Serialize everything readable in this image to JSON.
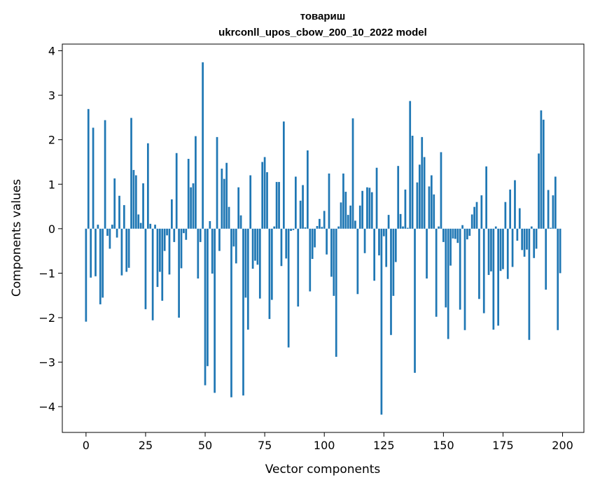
{
  "chart_data": {
    "type": "bar",
    "title_line1": "товариш",
    "title_line2": "ukrconll_upos_cbow_200_10_2022 model",
    "xlabel": "Vector components",
    "ylabel": "Components values",
    "xlim": [
      -9.95,
      208.95
    ],
    "ylim": [
      -4.58,
      4.15
    ],
    "xticks": [
      0,
      25,
      50,
      75,
      100,
      125,
      150,
      175,
      200
    ],
    "xtick_labels": [
      "0",
      "25",
      "50",
      "75",
      "100",
      "125",
      "150",
      "175",
      "200"
    ],
    "yticks": [
      -4,
      -3,
      -2,
      -1,
      0,
      1,
      2,
      3,
      4
    ],
    "ytick_labels": [
      "−4",
      "−3",
      "−2",
      "−1",
      "0",
      "1",
      "2",
      "3",
      "4"
    ],
    "bar_color": "#1f77b4",
    "grid": false,
    "values": [
      -2.09,
      2.69,
      -1.1,
      2.27,
      -1.07,
      0.09,
      -1.7,
      -1.55,
      2.44,
      -0.16,
      -0.45,
      0.09,
      1.13,
      -0.2,
      0.74,
      -1.05,
      0.53,
      -0.97,
      -0.88,
      2.49,
      1.32,
      1.2,
      0.32,
      0.13,
      1.02,
      -1.81,
      1.92,
      0.11,
      -2.06,
      0.09,
      -1.31,
      -0.97,
      -1.62,
      -0.5,
      -0.15,
      -1.03,
      0.66,
      -0.3,
      1.7,
      -2.0,
      -0.89,
      -0.1,
      -0.25,
      1.57,
      0.93,
      1.02,
      2.08,
      -1.12,
      -0.3,
      3.74,
      -3.52,
      -3.09,
      0.17,
      -1.01,
      -3.69,
      2.06,
      -0.5,
      1.35,
      1.12,
      1.48,
      0.49,
      -3.79,
      -0.4,
      -0.78,
      0.93,
      0.3,
      -3.75,
      -1.55,
      -2.27,
      1.2,
      -0.9,
      -0.72,
      -0.81,
      -1.57,
      1.5,
      1.61,
      1.27,
      -2.03,
      -1.6,
      0.05,
      1.05,
      1.05,
      -0.84,
      2.41,
      -0.67,
      -2.67,
      -0.05,
      -0.03,
      1.17,
      -1.75,
      0.63,
      0.98,
      0.03,
      1.76,
      -1.41,
      -0.68,
      -0.42,
      0.06,
      0.22,
      0.04,
      0.4,
      -0.58,
      1.24,
      -1.08,
      -1.51,
      -2.88,
      0.05,
      0.59,
      1.24,
      0.83,
      0.31,
      0.52,
      2.48,
      0.18,
      -1.47,
      0.52,
      0.85,
      -0.55,
      0.93,
      0.92,
      0.82,
      -1.17,
      1.37,
      -0.6,
      -4.18,
      -0.17,
      -0.86,
      0.31,
      -2.39,
      -1.51,
      -0.75,
      1.41,
      0.33,
      0.05,
      0.88,
      0.02,
      2.87,
      2.09,
      -3.24,
      1.04,
      1.44,
      2.06,
      1.61,
      -1.12,
      0.95,
      1.2,
      0.77,
      -1.98,
      0.05,
      1.72,
      -0.3,
      -1.77,
      -2.48,
      -0.83,
      -0.22,
      -0.23,
      -0.32,
      -1.82,
      0.08,
      -2.28,
      -0.24,
      -0.16,
      0.32,
      0.49,
      0.6,
      -1.58,
      0.75,
      -1.9,
      1.4,
      -1.04,
      -0.96,
      -2.27,
      0.05,
      -2.18,
      -0.95,
      -0.91,
      0.6,
      -1.13,
      0.88,
      -0.86,
      1.09,
      -0.27,
      0.46,
      -0.48,
      -0.63,
      -0.47,
      -2.5,
      0.05,
      -0.66,
      -0.45,
      1.69,
      2.66,
      2.45,
      -1.37,
      0.87,
      0.02,
      0.75,
      1.17,
      -2.28,
      -1.0
    ]
  }
}
